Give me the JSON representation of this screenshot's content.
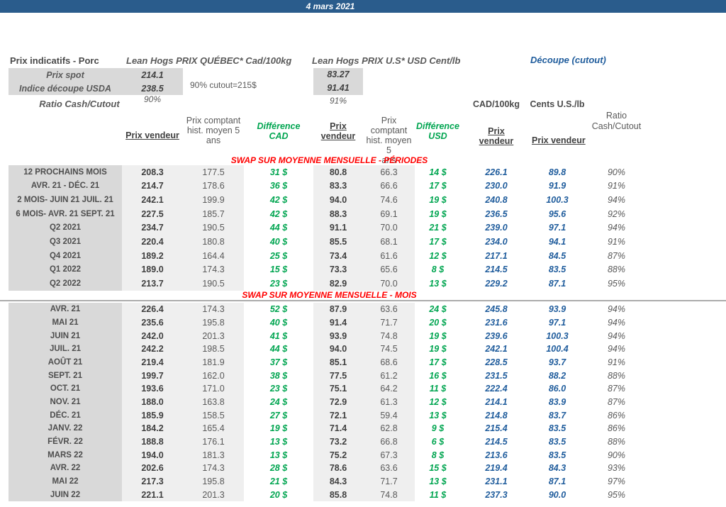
{
  "title_bar": {
    "date": "4 mars 2021"
  },
  "colors": {
    "title_bar_blue": "#2A5C8C",
    "accent_blue": "#1F5C9C",
    "positive_green": "#00A550",
    "separator_red": "#FF0000",
    "label_column_gray": "#D9D9D9",
    "value_column_gray": "#EFEFEF",
    "text_dark_gray": "#404040"
  },
  "header": {
    "left_title": "Prix indicatifs - Porc",
    "quebec_title": "Lean Hogs PRIX QUÉBEC* Cad/100kg",
    "us_title": "Lean Hogs PRIX U.S* USD Cent/lb",
    "cutout_title": "Découpe (cutout)",
    "spot_label": "Prix spot",
    "spot_cad": "214.1",
    "spot_usd": "83.27",
    "index_label": "Indice découpe USDA",
    "index_cad": "238.5",
    "index_usd": "91.41",
    "cutout_note": "90% cutout=215$",
    "ratio_label": "Ratio Cash/Cutout",
    "ratio_cad": "90%",
    "ratio_usd": "91%"
  },
  "column_headers": {
    "unit_cad": "CAD/100kg",
    "unit_cents": "Cents U.S./lb",
    "seller_1": "Prix vendeur",
    "hist_1": "Prix comptant\nhist. moyen 5\nans",
    "diff_cad": "Différence\nCAD",
    "seller_2": "Prix\nvendeur",
    "hist_2": "Prix comptant\nhist. moyen 5\nans",
    "diff_usd": "Différence\nUSD",
    "seller_cutout_cad": "Prix\nvendeur",
    "seller_cutout_cents": "Prix vendeur",
    "ratio": "Ratio\nCash/Cutout"
  },
  "sections": [
    {
      "separator": "SWAP SUR MOYENNE MENSUELLE - PÉRIODES",
      "rows": [
        {
          "label": "12 PROCHAINS MOIS",
          "values": [
            "208.3",
            "177.5",
            "31 $",
            "80.8",
            "66.3",
            "14 $",
            "226.1",
            "89.8",
            "90%"
          ]
        },
        {
          "label": "AVR. 21 -  DÉC. 21",
          "values": [
            "214.7",
            "178.6",
            "36 $",
            "83.3",
            "66.6",
            "17 $",
            "230.0",
            "91.9",
            "91%"
          ]
        },
        {
          "label": "2 MOIS- JUIN 21 JUIL. 21",
          "values": [
            "242.1",
            "199.9",
            "42 $",
            "94.0",
            "74.6",
            "19 $",
            "240.8",
            "100.3",
            "94%"
          ]
        },
        {
          "label": "6 MOIS- AVR. 21 SEPT. 21",
          "values": [
            "227.5",
            "185.7",
            "42 $",
            "88.3",
            "69.1",
            "19 $",
            "236.5",
            "95.6",
            "92%"
          ]
        },
        {
          "label": "Q2 2021",
          "values": [
            "234.7",
            "190.5",
            "44 $",
            "91.1",
            "70.0",
            "21 $",
            "239.0",
            "97.1",
            "94%"
          ]
        },
        {
          "label": "Q3 2021",
          "values": [
            "220.4",
            "180.8",
            "40 $",
            "85.5",
            "68.1",
            "17 $",
            "234.0",
            "94.1",
            "91%"
          ]
        },
        {
          "label": "Q4 2021",
          "values": [
            "189.2",
            "164.4",
            "25 $",
            "73.4",
            "61.6",
            "12 $",
            "217.1",
            "84.5",
            "87%"
          ]
        },
        {
          "label": "Q1 2022",
          "values": [
            "189.0",
            "174.3",
            "15 $",
            "73.3",
            "65.6",
            "8 $",
            "214.5",
            "83.5",
            "88%"
          ]
        },
        {
          "label": "Q2 2022",
          "values": [
            "213.7",
            "190.5",
            "23 $",
            "82.9",
            "70.0",
            "13 $",
            "229.2",
            "87.1",
            "95%"
          ]
        }
      ]
    },
    {
      "separator": "SWAP SUR MOYENNE MENSUELLE - MOIS",
      "rows": [
        {
          "label": "AVR. 21",
          "values": [
            "226.4",
            "174.3",
            "52 $",
            "87.9",
            "63.6",
            "24 $",
            "245.8",
            "93.9",
            "94%"
          ]
        },
        {
          "label": "MAI 21",
          "values": [
            "235.6",
            "195.8",
            "40 $",
            "91.4",
            "71.7",
            "20 $",
            "231.6",
            "97.1",
            "94%"
          ]
        },
        {
          "label": "JUIN 21",
          "values": [
            "242.0",
            "201.3",
            "41 $",
            "93.9",
            "74.8",
            "19 $",
            "239.6",
            "100.3",
            "94%"
          ]
        },
        {
          "label": "JUIL. 21",
          "values": [
            "242.2",
            "198.5",
            "44 $",
            "94.0",
            "74.5",
            "19 $",
            "242.1",
            "100.4",
            "94%"
          ]
        },
        {
          "label": "AOÛT 21",
          "values": [
            "219.4",
            "181.9",
            "37 $",
            "85.1",
            "68.6",
            "17 $",
            "228.5",
            "93.7",
            "91%"
          ]
        },
        {
          "label": "SEPT. 21",
          "values": [
            "199.7",
            "162.0",
            "38 $",
            "77.5",
            "61.2",
            "16 $",
            "231.5",
            "88.2",
            "88%"
          ]
        },
        {
          "label": "OCT. 21",
          "values": [
            "193.6",
            "171.0",
            "23 $",
            "75.1",
            "64.2",
            "11 $",
            "222.4",
            "86.0",
            "87%"
          ]
        },
        {
          "label": "NOV. 21",
          "values": [
            "188.0",
            "163.8",
            "24 $",
            "72.9",
            "61.3",
            "12 $",
            "214.1",
            "83.9",
            "87%"
          ]
        },
        {
          "label": "DÉC. 21",
          "values": [
            "185.9",
            "158.5",
            "27 $",
            "72.1",
            "59.4",
            "13 $",
            "214.8",
            "83.7",
            "86%"
          ]
        },
        {
          "label": "JANV. 22",
          "values": [
            "184.2",
            "165.4",
            "19 $",
            "71.4",
            "62.8",
            "9 $",
            "215.4",
            "83.5",
            "86%"
          ]
        },
        {
          "label": "FÉVR. 22",
          "values": [
            "188.8",
            "176.1",
            "13 $",
            "73.2",
            "66.8",
            "6 $",
            "214.5",
            "83.5",
            "88%"
          ]
        },
        {
          "label": "MARS 22",
          "values": [
            "194.0",
            "181.3",
            "13 $",
            "75.2",
            "67.3",
            "8 $",
            "213.6",
            "83.5",
            "90%"
          ]
        },
        {
          "label": "AVR. 22",
          "values": [
            "202.6",
            "174.3",
            "28 $",
            "78.6",
            "63.6",
            "15 $",
            "219.4",
            "84.3",
            "93%"
          ]
        },
        {
          "label": "MAI 22",
          "values": [
            "217.3",
            "195.8",
            "21 $",
            "84.3",
            "71.7",
            "13 $",
            "231.1",
            "87.1",
            "97%"
          ]
        },
        {
          "label": "JUIN 22",
          "values": [
            "221.1",
            "201.3",
            "20 $",
            "85.8",
            "74.8",
            "11 $",
            "237.3",
            "90.0",
            "95%"
          ]
        }
      ]
    }
  ]
}
